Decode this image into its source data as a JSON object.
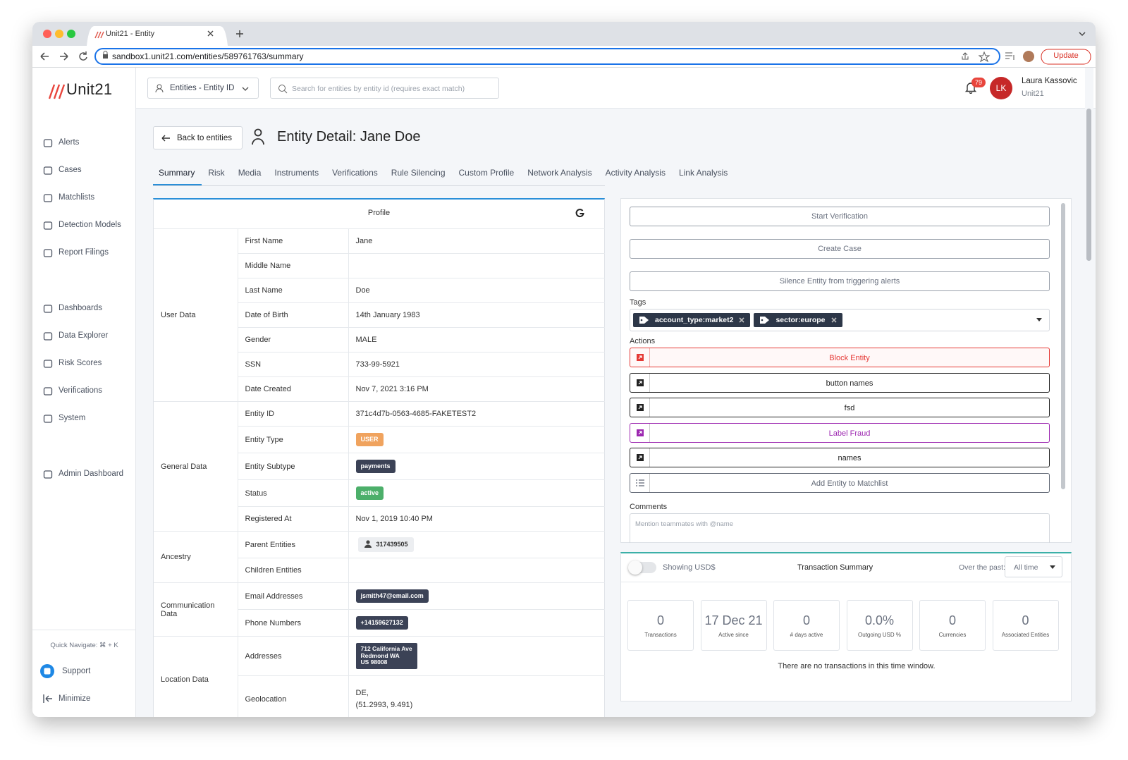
{
  "browser": {
    "tab_title": "Unit21 - Entity",
    "url": "sandbox1.unit21.com/entities/589761763/summary",
    "update_button": "Update"
  },
  "header": {
    "logo": "Unit21",
    "entity_selector": "Entities - Entity ID",
    "search_placeholder": "Search for entities by entity id (requires exact match)",
    "notification_count": "79",
    "user_initials": "LK",
    "user_name": "Laura Kassovic",
    "user_org": "Unit21"
  },
  "sidebar": {
    "nav": [
      [
        "Alerts",
        "Cases",
        "Matchlists",
        "Detection Models",
        "Report Filings"
      ],
      [
        "Dashboards",
        "Data Explorer",
        "Risk Scores",
        "Verifications",
        "System"
      ],
      [
        "Admin Dashboard"
      ]
    ],
    "quick_navigate": "Quick Navigate: ⌘ + K",
    "support": "Support",
    "minimize": "Minimize"
  },
  "page": {
    "back_button": "Back to entities",
    "title": "Entity Detail: Jane Doe",
    "tabs": [
      "Summary",
      "Risk",
      "Media",
      "Instruments",
      "Verifications",
      "Rule Silencing",
      "Custom Profile",
      "Network Analysis",
      "Activity Analysis",
      "Link Analysis"
    ],
    "active_tab": 0
  },
  "profile": {
    "title": "Profile",
    "groups": [
      {
        "label": "User Data",
        "rows": [
          {
            "field": "First Name",
            "value": "Jane"
          },
          {
            "field": "Middle Name"
          },
          {
            "field": "Last Name",
            "value": "Doe"
          },
          {
            "field": "Date of Birth",
            "value": "14th January 1983"
          },
          {
            "field": "Gender",
            "value": "MALE"
          },
          {
            "field": "SSN",
            "value": "733-99-5921"
          },
          {
            "field": "Date Created",
            "value": "Nov 7, 2021 3:16 PM"
          }
        ]
      },
      {
        "label": "General Data",
        "rows": [
          {
            "field": "Entity ID",
            "value": "371c4d7b-0563-4685-FAKETEST2"
          },
          {
            "field": "Entity Type",
            "value": "USER",
            "badge": "#f0a35e"
          },
          {
            "field": "Entity Subtype",
            "value": "payments",
            "badge": "#3b4256"
          },
          {
            "field": "Status",
            "value": "active",
            "badge": "#4caf6a"
          },
          {
            "field": "Registered At",
            "value": "Nov 1, 2019 10:40 PM"
          }
        ]
      },
      {
        "label": "Ancestry",
        "rows": [
          {
            "field": "Parent Entities",
            "value": "317439505",
            "badge": "#eceef1"
          },
          {
            "field": "Children Entities"
          }
        ]
      },
      {
        "label": "Communication Data",
        "rows": [
          {
            "field": "Email Addresses",
            "value": "jsmith47@email.com",
            "badge": "#3b4256"
          },
          {
            "field": "Phone Numbers",
            "value": "+14159627132",
            "badge": "#3b4256"
          }
        ]
      },
      {
        "label": "Location Data",
        "rows": [
          {
            "field": "Addresses",
            "lines": [
              "712 California Ave",
              "Redmond WA",
              "US 98008"
            ],
            "badge": "#3b4256"
          },
          {
            "field": "Geolocation",
            "lines": [
              "DE,",
              "(51.2993, 9.491)"
            ]
          }
        ]
      }
    ]
  },
  "actions_panel": {
    "buttons": [
      "Start Verification",
      "Create Case",
      "Silence Entity from triggering alerts"
    ],
    "tags_label": "Tags",
    "tags": [
      "account_type:market2",
      "sector:europe"
    ],
    "actions_label": "Actions",
    "actions": [
      {
        "label": "Block Entity",
        "color": "#e53935"
      },
      {
        "label": "button names",
        "color": "#222222"
      },
      {
        "label": "fsd",
        "color": "#222222"
      },
      {
        "label": "Label Fraud",
        "color": "#9c27b0"
      },
      {
        "label": "names",
        "color": "#222222"
      },
      {
        "label": "Add Entity to Matchlist",
        "color": "#5f6673",
        "icon": "list"
      }
    ],
    "comments_label": "Comments",
    "comments_placeholder": "Mention teammates with @name"
  },
  "transaction_summary": {
    "toggle_label": "Showing USD$",
    "toggle_on": false,
    "title": "Transaction Summary",
    "period_label": "Over the past:",
    "period": "All time",
    "stats": [
      {
        "value": "0",
        "label": "Transactions"
      },
      {
        "value": "17 Dec 21",
        "label": "Active since"
      },
      {
        "value": "0",
        "label": "# days active"
      },
      {
        "value": "0.0%",
        "label": "Outgoing USD %"
      },
      {
        "value": "0",
        "label": "Currencies"
      },
      {
        "value": "0",
        "label": "Associated Entities"
      }
    ],
    "empty_message": "There are no transactions in this time window."
  }
}
